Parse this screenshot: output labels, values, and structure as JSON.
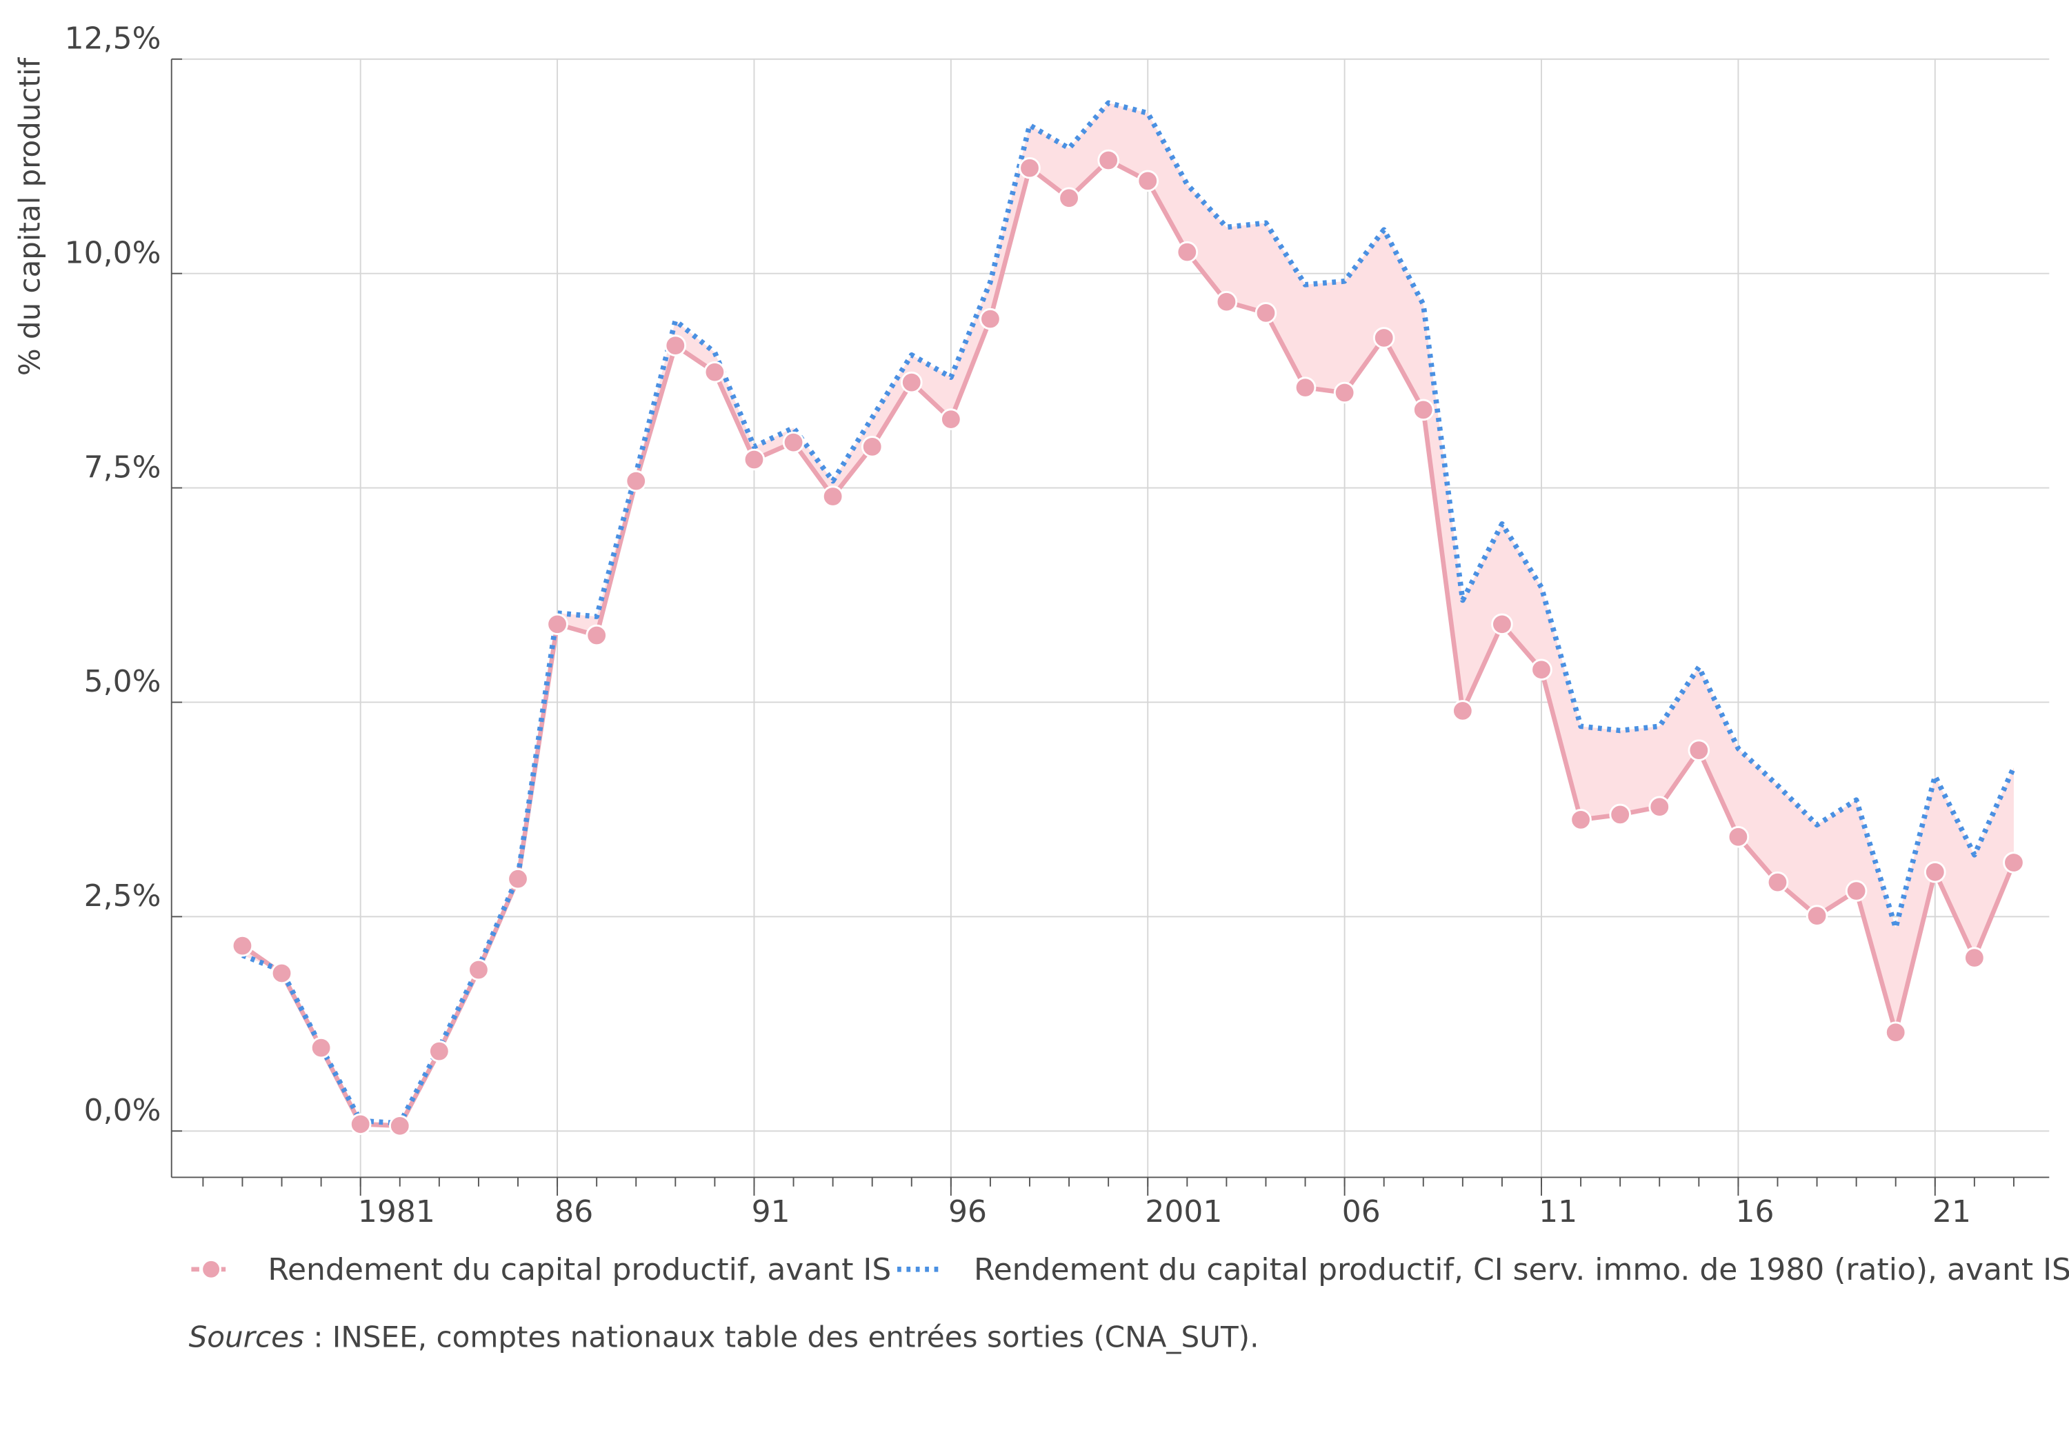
{
  "chart_data": {
    "type": "line",
    "y_label": "% du capital productif",
    "x": [
      1978,
      1979,
      1980,
      1981,
      1982,
      1983,
      1984,
      1985,
      1986,
      1987,
      1988,
      1989,
      1990,
      1991,
      1992,
      1993,
      1994,
      1995,
      1996,
      1997,
      1998,
      1999,
      2000,
      2001,
      2002,
      2003,
      2004,
      2005,
      2006,
      2007,
      2008,
      2009,
      2010,
      2011,
      2012,
      2013,
      2014,
      2015,
      2016,
      2017,
      2018,
      2019,
      2020,
      2021,
      2022,
      2023
    ],
    "series": [
      {
        "name": "Rendement du capital productif, avant IS",
        "color": "#eba3b1",
        "style": "solid-markers",
        "values": [
          2.16,
          1.84,
          0.97,
          0.08,
          0.06,
          0.93,
          1.88,
          2.94,
          5.91,
          5.78,
          7.58,
          9.16,
          8.85,
          7.83,
          8.03,
          7.4,
          7.98,
          8.73,
          8.3,
          9.47,
          11.23,
          10.88,
          11.32,
          11.08,
          10.25,
          9.67,
          9.54,
          8.67,
          8.61,
          9.25,
          8.41,
          4.9,
          5.91,
          5.38,
          3.63,
          3.69,
          3.78,
          4.44,
          3.43,
          2.9,
          2.51,
          2.8,
          1.15,
          3.02,
          2.02,
          3.13
        ]
      },
      {
        "name": "Rendement du capital productif, CI serv. immo. de 1980 (ratio), avant IS",
        "color": "#4a90e2",
        "style": "dotted",
        "values": [
          2.05,
          1.87,
          0.98,
          0.12,
          0.09,
          0.97,
          1.91,
          2.97,
          6.04,
          6.0,
          7.67,
          9.45,
          9.08,
          7.98,
          8.2,
          7.58,
          8.32,
          9.05,
          8.79,
          9.9,
          11.73,
          11.46,
          11.99,
          11.87,
          11.04,
          10.54,
          10.59,
          9.87,
          9.91,
          10.51,
          9.64,
          6.19,
          7.08,
          6.34,
          4.72,
          4.67,
          4.72,
          5.41,
          4.46,
          4.03,
          3.57,
          3.86,
          2.37,
          4.14,
          3.22,
          4.24
        ]
      }
    ],
    "fill_between_color": "#fde0e3",
    "xlim": [
      1976.2,
      2023.9
    ],
    "xticks": [
      1981,
      {
        "value": 1986,
        "label": "86"
      },
      {
        "value": 1991,
        "label": "91"
      },
      {
        "value": 1996,
        "label": "96"
      },
      2001,
      {
        "value": 2006,
        "label": "06"
      },
      {
        "value": 2011,
        "label": "11"
      },
      {
        "value": 2016,
        "label": "16"
      },
      {
        "value": 2021,
        "label": "21"
      }
    ],
    "ylim": [
      -0.54,
      12.5
    ],
    "yticks": [
      {
        "value": 0,
        "label": "0,0%"
      },
      {
        "value": 2.5,
        "label": "2,5%"
      },
      {
        "value": 5,
        "label": "5,0%"
      },
      {
        "value": 7.5,
        "label": "7,5%"
      },
      {
        "value": 10,
        "label": "10,0%"
      },
      {
        "value": 12.5,
        "label": "12,5%"
      }
    ],
    "grid": true,
    "source_label": "Sources",
    "source_text": " : INSEE, comptes nationaux table des entrées sorties (CNA_SUT)."
  }
}
